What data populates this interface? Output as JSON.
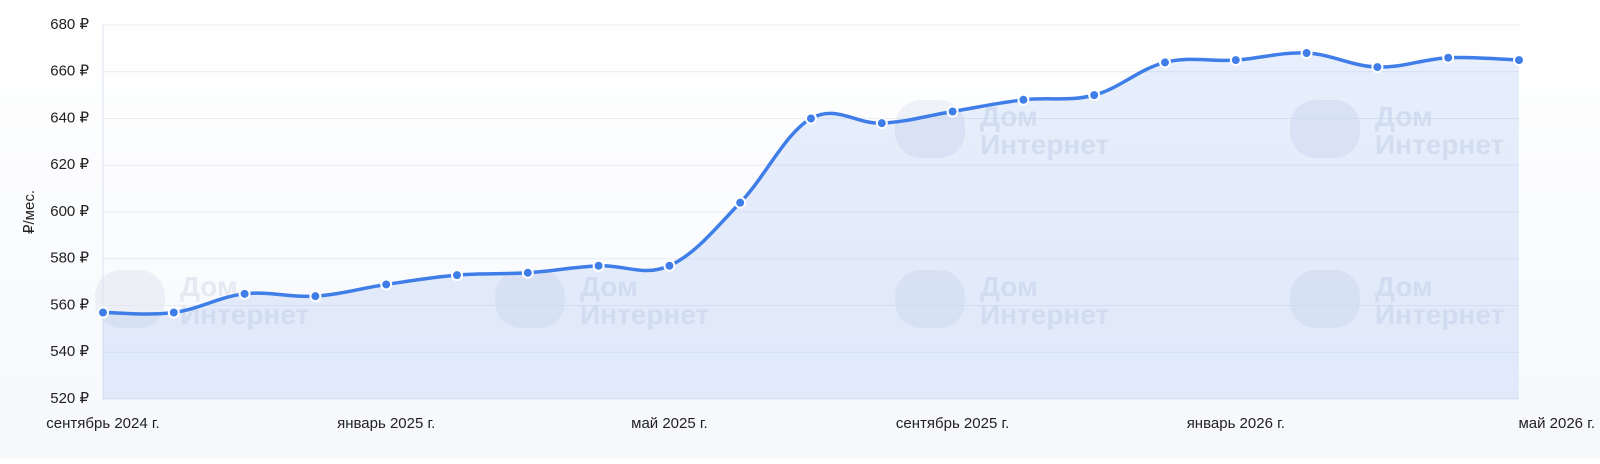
{
  "chart_data": {
    "type": "line",
    "y_axis_label": "₽/мес.",
    "watermark": [
      "Дом",
      "Интернет"
    ],
    "categories": [
      "сентябрь 2024 г.",
      null,
      null,
      null,
      "январь 2025 г.",
      null,
      null,
      null,
      "май 2025 г.",
      null,
      null,
      null,
      "сентябрь 2025 г.",
      null,
      null,
      null,
      "январь 2026 г.",
      null,
      null,
      null,
      "май 2026 г."
    ],
    "series": [
      {
        "color": "#3f7ee8",
        "values": [
          557,
          557,
          565,
          564,
          569,
          573,
          574,
          577,
          577,
          604,
          640,
          638,
          643,
          648,
          650,
          664,
          665,
          668,
          662,
          666,
          665
        ]
      }
    ],
    "ylim": [
      520,
      680
    ],
    "yticks": [
      {
        "value": 520,
        "label": "520 ₽"
      },
      {
        "value": 540,
        "label": "540 ₽"
      },
      {
        "value": 560,
        "label": "560 ₽"
      },
      {
        "value": 580,
        "label": "580 ₽"
      },
      {
        "value": 600,
        "label": "600 ₽"
      },
      {
        "value": 620,
        "label": "620 ₽"
      },
      {
        "value": 640,
        "label": "640 ₽"
      },
      {
        "value": 660,
        "label": "660 ₽"
      },
      {
        "value": 680,
        "label": "680 ₽"
      }
    ],
    "grid": true
  }
}
